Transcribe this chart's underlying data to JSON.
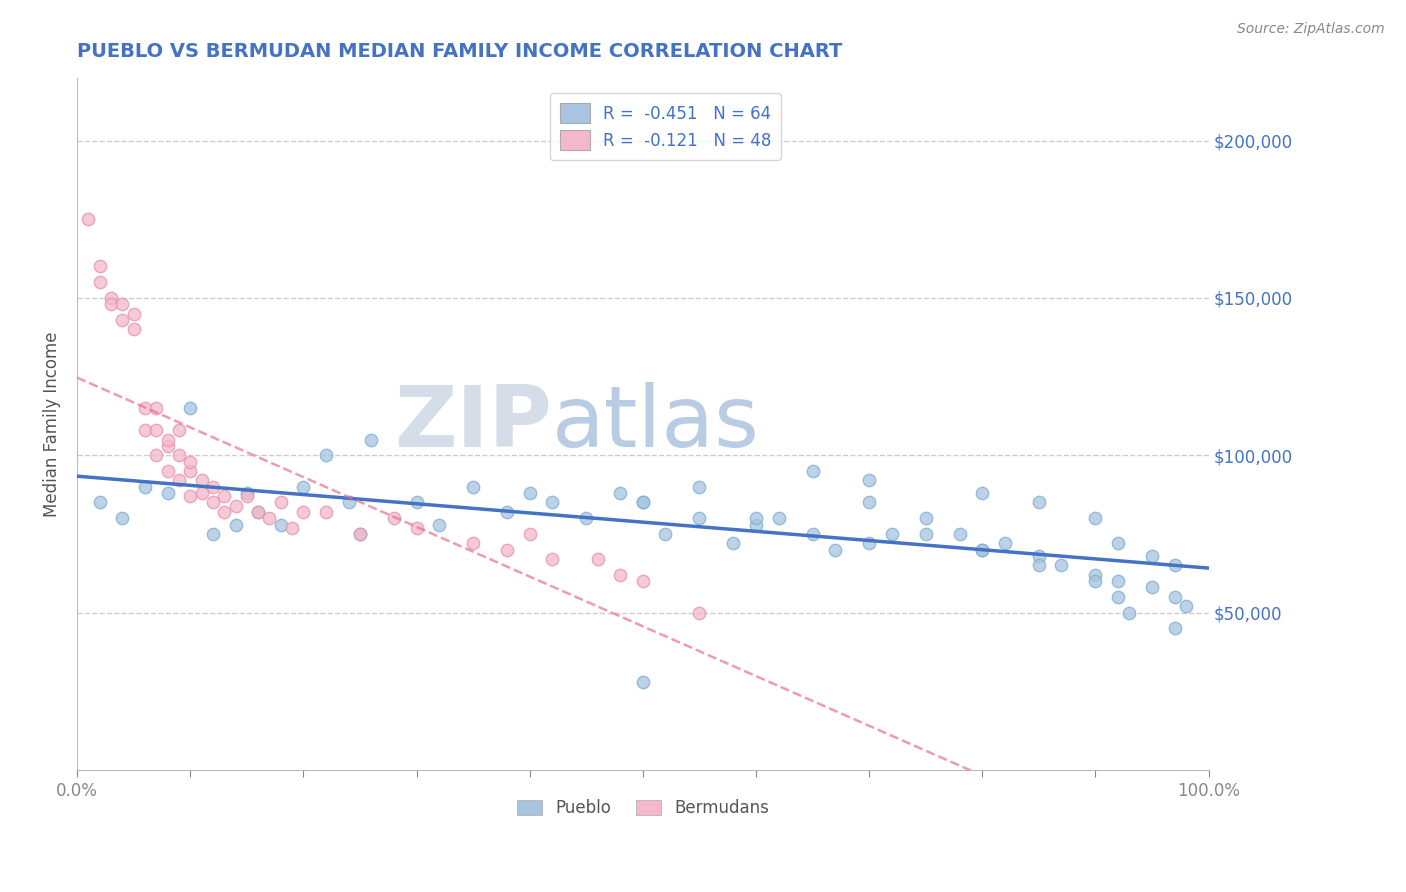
{
  "title": "PUEBLO VS BERMUDAN MEDIAN FAMILY INCOME CORRELATION CHART",
  "source": "Source: ZipAtlas.com",
  "ylabel": "Median Family Income",
  "y_ticks": [
    50000,
    100000,
    150000,
    200000
  ],
  "y_tick_labels": [
    "$50,000",
    "$100,000",
    "$150,000",
    "$200,000"
  ],
  "legend_label1": "R =  -0.451   N = 64",
  "legend_label2": "R =  -0.121   N = 48",
  "legend_label_bottom1": "Pueblo",
  "legend_label_bottom2": "Bermudans",
  "pueblo_color": "#a8c4e0",
  "pueblo_edge_color": "#7aafd4",
  "bermudans_color": "#f4b8cc",
  "bermudans_edge_color": "#e890aa",
  "pueblo_line_color": "#4472c4",
  "bermudans_line_color": "#e87090",
  "watermark_zip_color": "#d0d8e8",
  "watermark_atlas_color": "#b8cce4",
  "background_color": "#ffffff",
  "grid_color": "#c8c8d0",
  "title_color": "#4472c4",
  "right_label_color": "#4472c4",
  "pueblo_x": [
    0.02,
    0.04,
    0.06,
    0.08,
    0.1,
    0.12,
    0.14,
    0.15,
    0.16,
    0.18,
    0.2,
    0.22,
    0.24,
    0.26,
    0.3,
    0.32,
    0.35,
    0.38,
    0.42,
    0.45,
    0.48,
    0.5,
    0.52,
    0.55,
    0.58,
    0.6,
    0.62,
    0.65,
    0.67,
    0.7,
    0.72,
    0.75,
    0.78,
    0.8,
    0.82,
    0.85,
    0.87,
    0.9,
    0.92,
    0.95,
    0.97,
    0.98,
    0.5,
    0.25,
    0.4,
    0.65,
    0.7,
    0.8,
    0.85,
    0.9,
    0.92,
    0.95,
    0.97,
    0.5,
    0.55,
    0.6,
    0.7,
    0.75,
    0.8,
    0.85,
    0.9,
    0.92,
    0.93,
    0.97
  ],
  "pueblo_y": [
    85000,
    80000,
    90000,
    88000,
    115000,
    75000,
    78000,
    88000,
    82000,
    78000,
    90000,
    100000,
    85000,
    105000,
    85000,
    78000,
    90000,
    82000,
    85000,
    80000,
    88000,
    85000,
    75000,
    80000,
    72000,
    78000,
    80000,
    75000,
    70000,
    72000,
    75000,
    80000,
    75000,
    70000,
    72000,
    68000,
    65000,
    62000,
    60000,
    58000,
    55000,
    52000,
    28000,
    75000,
    88000,
    95000,
    92000,
    88000,
    85000,
    80000,
    72000,
    68000,
    65000,
    85000,
    90000,
    80000,
    85000,
    75000,
    70000,
    65000,
    60000,
    55000,
    50000,
    45000
  ],
  "bermudans_x": [
    0.01,
    0.02,
    0.02,
    0.03,
    0.03,
    0.04,
    0.04,
    0.05,
    0.05,
    0.06,
    0.06,
    0.07,
    0.07,
    0.07,
    0.08,
    0.08,
    0.08,
    0.09,
    0.09,
    0.09,
    0.1,
    0.1,
    0.1,
    0.11,
    0.11,
    0.12,
    0.12,
    0.13,
    0.13,
    0.14,
    0.15,
    0.16,
    0.17,
    0.18,
    0.19,
    0.2,
    0.22,
    0.25,
    0.28,
    0.3,
    0.35,
    0.38,
    0.4,
    0.42,
    0.46,
    0.48,
    0.5,
    0.55
  ],
  "bermudans_y": [
    175000,
    160000,
    155000,
    150000,
    148000,
    143000,
    148000,
    140000,
    145000,
    108000,
    115000,
    100000,
    108000,
    115000,
    95000,
    103000,
    105000,
    92000,
    108000,
    100000,
    87000,
    95000,
    98000,
    88000,
    92000,
    85000,
    90000,
    82000,
    87000,
    84000,
    87000,
    82000,
    80000,
    85000,
    77000,
    82000,
    82000,
    75000,
    80000,
    77000,
    72000,
    70000,
    75000,
    67000,
    67000,
    62000,
    60000,
    50000
  ]
}
